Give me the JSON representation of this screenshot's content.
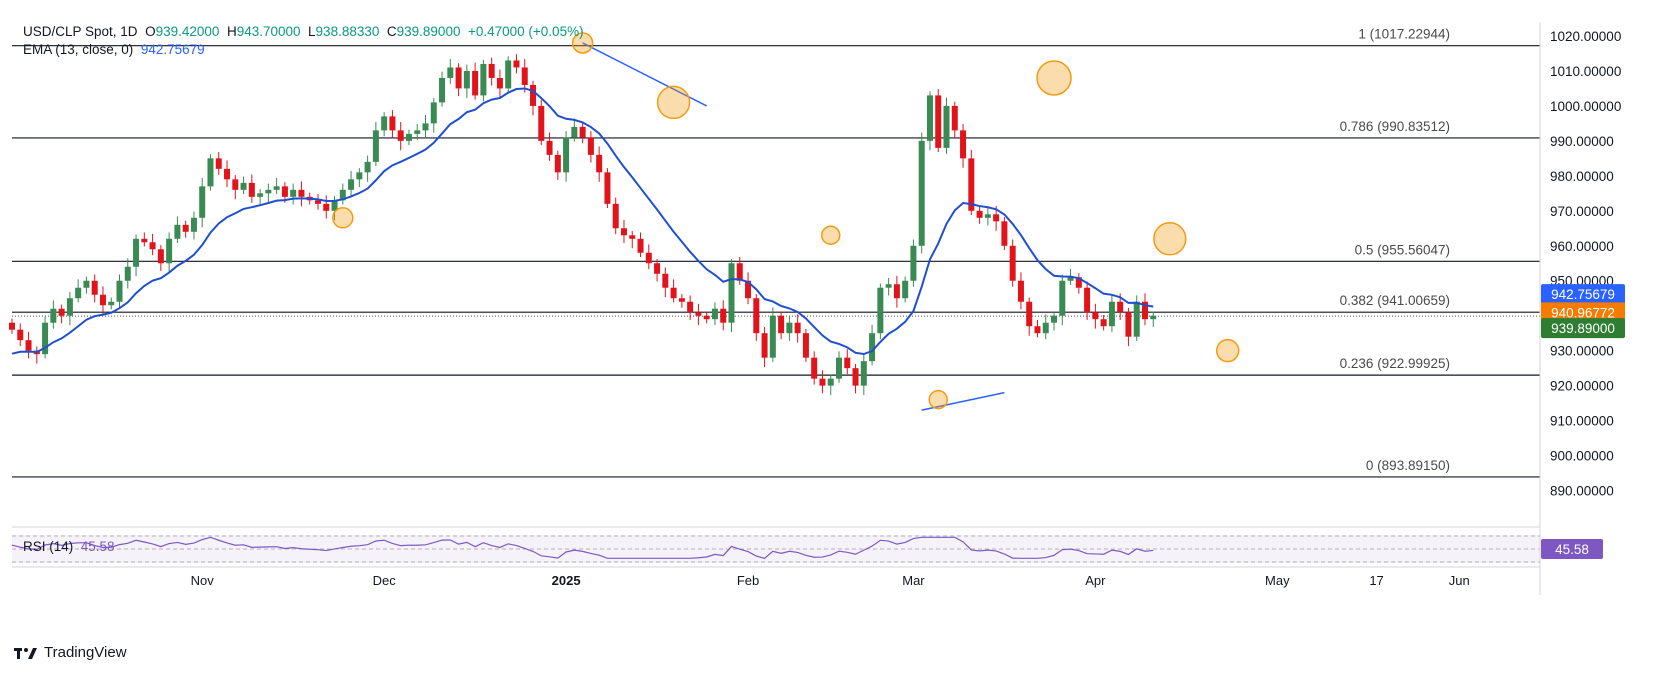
{
  "legend": {
    "symbol": "USD/CLP Spot, 1D",
    "o_label": "O",
    "o": "939.42000",
    "h_label": "H",
    "h": "943.70000",
    "l_label": "L",
    "l": "938.88330",
    "c_label": "C",
    "c": "939.89000",
    "change": "+0.47000 (+0.05%)",
    "ema_label": "EMA (13, close, 0)",
    "ema_value": "942.75679",
    "rsi_label": "RSI (14)",
    "rsi_value": "45.58"
  },
  "brand": "TradingView",
  "colors": {
    "up": "#3a8a53",
    "down": "#e1141c",
    "ema": "#1f4fd1",
    "rsi": "#7e57c2",
    "marker": "#f39c12",
    "fib_line": "#131722",
    "trend": "#2962ff"
  },
  "chart_data": {
    "type": "candlestick",
    "y_range": [
      881,
      1024
    ],
    "y_ticks": [
      "1020.00000",
      "1010.00000",
      "1000.00000",
      "990.00000",
      "980.00000",
      "970.00000",
      "960.00000",
      "950.00000",
      "940.00000",
      "930.00000",
      "920.00000",
      "910.00000",
      "900.00000",
      "890.00000"
    ],
    "y_tick_values": [
      1020,
      1010,
      1000,
      990,
      980,
      970,
      960,
      950,
      940,
      930,
      920,
      910,
      900,
      890
    ],
    "x_labels": [
      {
        "label": "Nov",
        "index": 23
      },
      {
        "label": "Dec",
        "index": 45
      },
      {
        "label": "2025",
        "index": 67
      },
      {
        "label": "Feb",
        "index": 89
      },
      {
        "label": "Mar",
        "index": 109
      },
      {
        "label": "Apr",
        "index": 131
      },
      {
        "label": "May",
        "index": 153
      },
      {
        "label": "17",
        "index": 165
      },
      {
        "label": "Jun",
        "index": 175
      }
    ],
    "fib_levels": [
      {
        "label": "1 (1017.22944)",
        "value": 1017.22944
      },
      {
        "label": "0.786 (990.83512)",
        "value": 990.83512
      },
      {
        "label": "0.5 (955.56047)",
        "value": 955.56047
      },
      {
        "label": "0.382 (941.00659)",
        "value": 941.00659
      },
      {
        "label": "0.236 (922.99925)",
        "value": 922.99925
      },
      {
        "label": "0 (893.89150)",
        "value": 893.8915
      }
    ],
    "price_tags": [
      {
        "text": "942.75679",
        "value": 942.75679,
        "color": "#2962ff"
      },
      {
        "text": "940.96772",
        "value": 940.96772,
        "color": "#f57c00"
      },
      {
        "text": "939.89000",
        "value": 939.89,
        "color": "#2e7d32"
      }
    ],
    "current_price": 939.89,
    "closes": [
      936,
      933,
      930,
      929,
      938,
      942,
      940,
      945,
      948,
      950,
      946,
      943,
      944,
      950,
      954,
      962,
      961,
      959,
      955,
      962,
      966,
      964,
      968,
      977,
      985,
      982,
      979,
      976,
      978,
      974,
      975,
      976,
      977,
      974,
      976,
      974,
      973,
      972,
      970,
      973,
      976,
      979,
      981,
      984,
      993,
      997,
      993,
      990,
      992,
      993,
      995,
      1001,
      1008,
      1011,
      1005,
      1010,
      1003,
      1012,
      1008,
      1005,
      1013,
      1011,
      1006,
      1000,
      990,
      986,
      981,
      991,
      994,
      991,
      986,
      981,
      972,
      965,
      963,
      962,
      958,
      955,
      952,
      948,
      945,
      944,
      941,
      940,
      939,
      942,
      938,
      955,
      950,
      945,
      935,
      928,
      940,
      935,
      938,
      935,
      928,
      922,
      920,
      922,
      928,
      925,
      920,
      927,
      935,
      948,
      949,
      945,
      950,
      960,
      990,
      1003,
      988,
      1000,
      993,
      985,
      970,
      968,
      969,
      967,
      960,
      950,
      944,
      937,
      935,
      938,
      940,
      950,
      951,
      948,
      941,
      939,
      937,
      944,
      941,
      934,
      944,
      939,
      940
    ]
  }
}
